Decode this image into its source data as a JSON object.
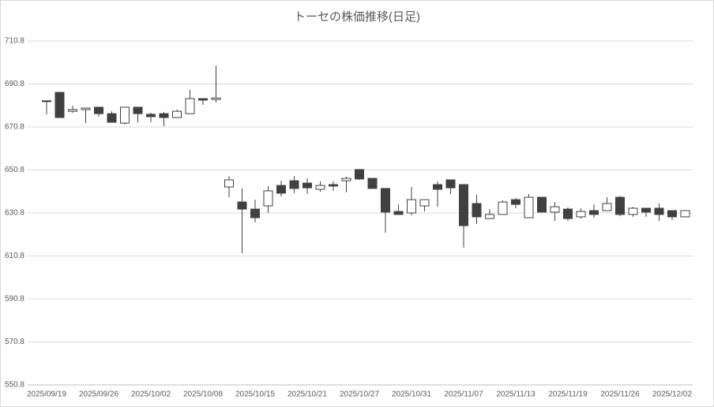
{
  "chart_data": {
    "type": "candlestick",
    "title": "トーセの株価推移(日足)",
    "categories": [
      "2025/09/19",
      null,
      null,
      null,
      "2025/09/26",
      null,
      null,
      null,
      "2025/10/02",
      null,
      null,
      null,
      "2025/10/08",
      null,
      null,
      null,
      "2025/10/15",
      null,
      null,
      null,
      "2025/10/21",
      null,
      null,
      null,
      "2025/10/27",
      null,
      null,
      null,
      "2025/10/31",
      null,
      null,
      null,
      "2025/11/07",
      null,
      null,
      null,
      "2025/11/13",
      null,
      null,
      null,
      "2025/11/19",
      null,
      null,
      null,
      "2025/11/26",
      null,
      null,
      null,
      "2025/12/02",
      null
    ],
    "open": [
      683.0,
      686.9,
      678.1,
      678.9,
      680.0,
      677.0,
      672.6,
      680.0,
      676.7,
      677.0,
      675.2,
      677.0,
      684.0,
      683.6,
      642.9,
      635.9,
      632.6,
      634.1,
      643.6,
      645.8,
      644.7,
      641.8,
      644.0,
      645.8,
      651.0,
      646.9,
      642.2,
      631.5,
      630.8,
      634.1,
      644.0,
      646.2,
      644.0,
      635.2,
      628.2,
      630.1,
      637.0,
      628.6,
      638.1,
      631.2,
      632.6,
      629.0,
      631.9,
      631.9,
      638.1,
      630.1,
      633.0,
      633.0,
      631.9,
      629.0
    ],
    "high": [
      683.0,
      686.9,
      680.7,
      679.8,
      680.0,
      678.1,
      680.0,
      680.0,
      677.4,
      677.8,
      678.9,
      688.0,
      684.0,
      699.4,
      648.0,
      642.2,
      637.0,
      643.3,
      645.8,
      648.0,
      646.9,
      645.5,
      645.5,
      647.7,
      651.0,
      646.9,
      642.2,
      634.8,
      642.9,
      637.0,
      645.5,
      646.2,
      644.0,
      639.2,
      632.6,
      636.7,
      637.8,
      639.6,
      638.1,
      635.9,
      633.4,
      633.0,
      634.8,
      638.1,
      638.8,
      633.7,
      633.0,
      635.2,
      631.9,
      631.9
    ],
    "low": [
      676.7,
      675.2,
      677.4,
      672.6,
      675.6,
      673.0,
      671.9,
      673.0,
      673.0,
      671.2,
      675.2,
      677.0,
      681.1,
      682.2,
      638.1,
      612.1,
      626.4,
      630.8,
      638.5,
      640.0,
      639.6,
      640.7,
      641.1,
      640.4,
      646.2,
      642.2,
      621.6,
      630.1,
      629.7,
      631.5,
      633.7,
      639.6,
      614.7,
      625.7,
      628.2,
      630.1,
      633.0,
      628.6,
      631.2,
      627.1,
      627.1,
      628.2,
      628.6,
      631.9,
      629.3,
      629.0,
      629.0,
      627.1,
      627.5,
      629.0
    ],
    "close": [
      682.6,
      675.2,
      678.9,
      679.6,
      677.0,
      673.0,
      680.0,
      677.0,
      675.6,
      675.2,
      678.1,
      684.0,
      683.3,
      684.3,
      646.2,
      632.6,
      628.6,
      641.1,
      640.0,
      642.2,
      642.5,
      643.6,
      643.3,
      646.9,
      646.6,
      642.2,
      631.2,
      630.1,
      637.0,
      637.0,
      641.8,
      642.5,
      624.9,
      629.0,
      630.1,
      635.9,
      634.8,
      638.1,
      631.2,
      633.7,
      628.2,
      631.5,
      630.1,
      635.2,
      630.1,
      633.0,
      631.2,
      630.1,
      629.0,
      631.9
    ],
    "up_color": "#ffffff",
    "down_color": "#404040",
    "line_color": "#404040",
    "ylim": [
      550.8,
      710.8
    ],
    "yticks": [
      550.8,
      570.8,
      590.8,
      610.8,
      630.8,
      650.8,
      670.8,
      690.8,
      710.8
    ],
    "grid": true
  }
}
